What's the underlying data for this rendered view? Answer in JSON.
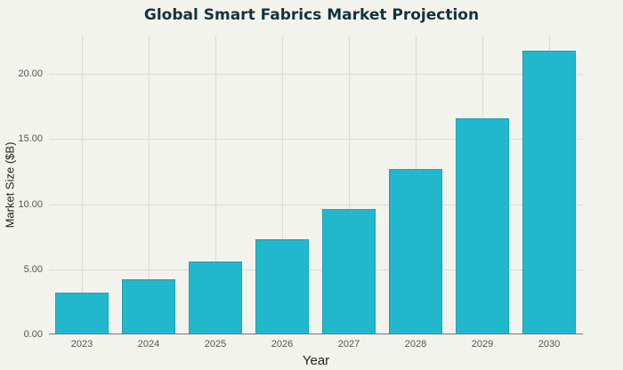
{
  "chart_data": {
    "type": "bar",
    "title": "Global Smart Fabrics Market Projection",
    "xlabel": "Year",
    "ylabel": "Market Size ($B)",
    "categories": [
      "2023",
      "2024",
      "2025",
      "2026",
      "2027",
      "2028",
      "2029",
      "2030"
    ],
    "values": [
      3.2,
      4.2,
      5.6,
      7.3,
      9.6,
      12.7,
      16.6,
      21.8
    ],
    "ylim": [
      0,
      23
    ],
    "yticks": [
      "0.00",
      "5.00",
      "10.00",
      "15.00",
      "20.00"
    ],
    "grid": true,
    "legend": null,
    "bar_color": "#21b8cd"
  }
}
